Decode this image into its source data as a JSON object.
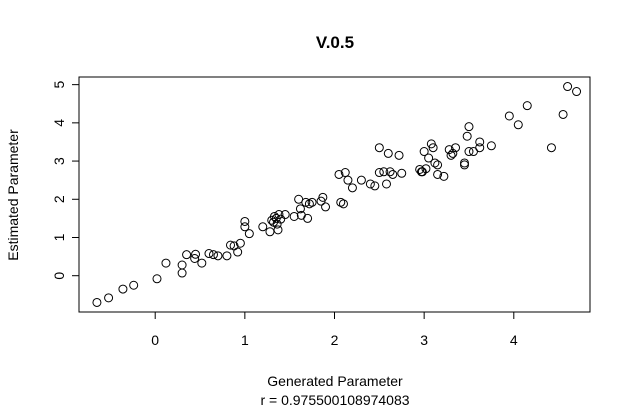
{
  "chart_data": {
    "type": "scatter",
    "title": "V.0.5",
    "xlabel": "Generated Parameter",
    "subtitle": "r = 0.975500108974083",
    "ylabel": "Estimated Parameter",
    "xlim": [
      -0.85,
      4.85
    ],
    "ylim": [
      -0.95,
      5.2
    ],
    "x_ticks": [
      0,
      1,
      2,
      3,
      4
    ],
    "x_tick_labels": [
      "0",
      "1",
      "2",
      "3",
      "4"
    ],
    "y_ticks": [
      0,
      1,
      2,
      3,
      4,
      5
    ],
    "y_tick_labels": [
      "0",
      "1",
      "2",
      "3",
      "4",
      "5"
    ],
    "grid": false,
    "marker": "open-circle",
    "point_color": "#000000",
    "points": [
      [
        -0.65,
        -0.7
      ],
      [
        -0.52,
        -0.58
      ],
      [
        -0.36,
        -0.35
      ],
      [
        -0.24,
        -0.25
      ],
      [
        0.02,
        -0.08
      ],
      [
        0.12,
        0.33
      ],
      [
        0.3,
        0.28
      ],
      [
        0.3,
        0.07
      ],
      [
        0.35,
        0.55
      ],
      [
        0.44,
        0.45
      ],
      [
        0.45,
        0.56
      ],
      [
        0.52,
        0.33
      ],
      [
        0.6,
        0.58
      ],
      [
        0.65,
        0.55
      ],
      [
        0.7,
        0.52
      ],
      [
        0.8,
        0.52
      ],
      [
        0.84,
        0.8
      ],
      [
        0.88,
        0.78
      ],
      [
        0.92,
        0.62
      ],
      [
        0.95,
        0.85
      ],
      [
        1.0,
        1.42
      ],
      [
        1.0,
        1.28
      ],
      [
        1.05,
        1.1
      ],
      [
        1.2,
        1.28
      ],
      [
        1.28,
        1.15
      ],
      [
        1.3,
        1.45
      ],
      [
        1.32,
        1.4
      ],
      [
        1.33,
        1.55
      ],
      [
        1.35,
        1.5
      ],
      [
        1.36,
        1.35
      ],
      [
        1.37,
        1.2
      ],
      [
        1.38,
        1.6
      ],
      [
        1.4,
        1.48
      ],
      [
        1.45,
        1.6
      ],
      [
        1.55,
        1.55
      ],
      [
        1.6,
        2.0
      ],
      [
        1.62,
        1.75
      ],
      [
        1.63,
        1.58
      ],
      [
        1.68,
        1.92
      ],
      [
        1.7,
        1.5
      ],
      [
        1.72,
        1.88
      ],
      [
        1.75,
        1.92
      ],
      [
        1.85,
        1.95
      ],
      [
        1.87,
        2.05
      ],
      [
        1.9,
        1.8
      ],
      [
        2.05,
        2.65
      ],
      [
        2.07,
        1.92
      ],
      [
        2.1,
        1.88
      ],
      [
        2.12,
        2.7
      ],
      [
        2.15,
        2.5
      ],
      [
        2.2,
        2.3
      ],
      [
        2.3,
        2.5
      ],
      [
        2.4,
        2.4
      ],
      [
        2.45,
        2.35
      ],
      [
        2.5,
        2.7
      ],
      [
        2.5,
        3.35
      ],
      [
        2.55,
        2.72
      ],
      [
        2.58,
        2.4
      ],
      [
        2.6,
        3.2
      ],
      [
        2.62,
        2.72
      ],
      [
        2.65,
        2.65
      ],
      [
        2.72,
        3.15
      ],
      [
        2.75,
        2.68
      ],
      [
        2.95,
        2.78
      ],
      [
        2.97,
        2.72
      ],
      [
        2.98,
        2.72
      ],
      [
        3.0,
        3.25
      ],
      [
        3.02,
        2.8
      ],
      [
        3.05,
        3.08
      ],
      [
        3.08,
        3.45
      ],
      [
        3.1,
        3.35
      ],
      [
        3.12,
        2.95
      ],
      [
        3.15,
        2.9
      ],
      [
        3.15,
        2.65
      ],
      [
        3.22,
        2.6
      ],
      [
        3.28,
        3.3
      ],
      [
        3.3,
        3.15
      ],
      [
        3.32,
        3.2
      ],
      [
        3.35,
        3.35
      ],
      [
        3.45,
        2.9
      ],
      [
        3.45,
        2.95
      ],
      [
        3.48,
        3.65
      ],
      [
        3.5,
        3.9
      ],
      [
        3.5,
        3.25
      ],
      [
        3.55,
        3.25
      ],
      [
        3.62,
        3.35
      ],
      [
        3.62,
        3.5
      ],
      [
        3.75,
        3.4
      ],
      [
        3.95,
        4.18
      ],
      [
        4.05,
        3.95
      ],
      [
        4.15,
        4.45
      ],
      [
        4.42,
        3.35
      ],
      [
        4.55,
        4.22
      ],
      [
        4.6,
        4.95
      ],
      [
        4.7,
        4.82
      ]
    ]
  }
}
